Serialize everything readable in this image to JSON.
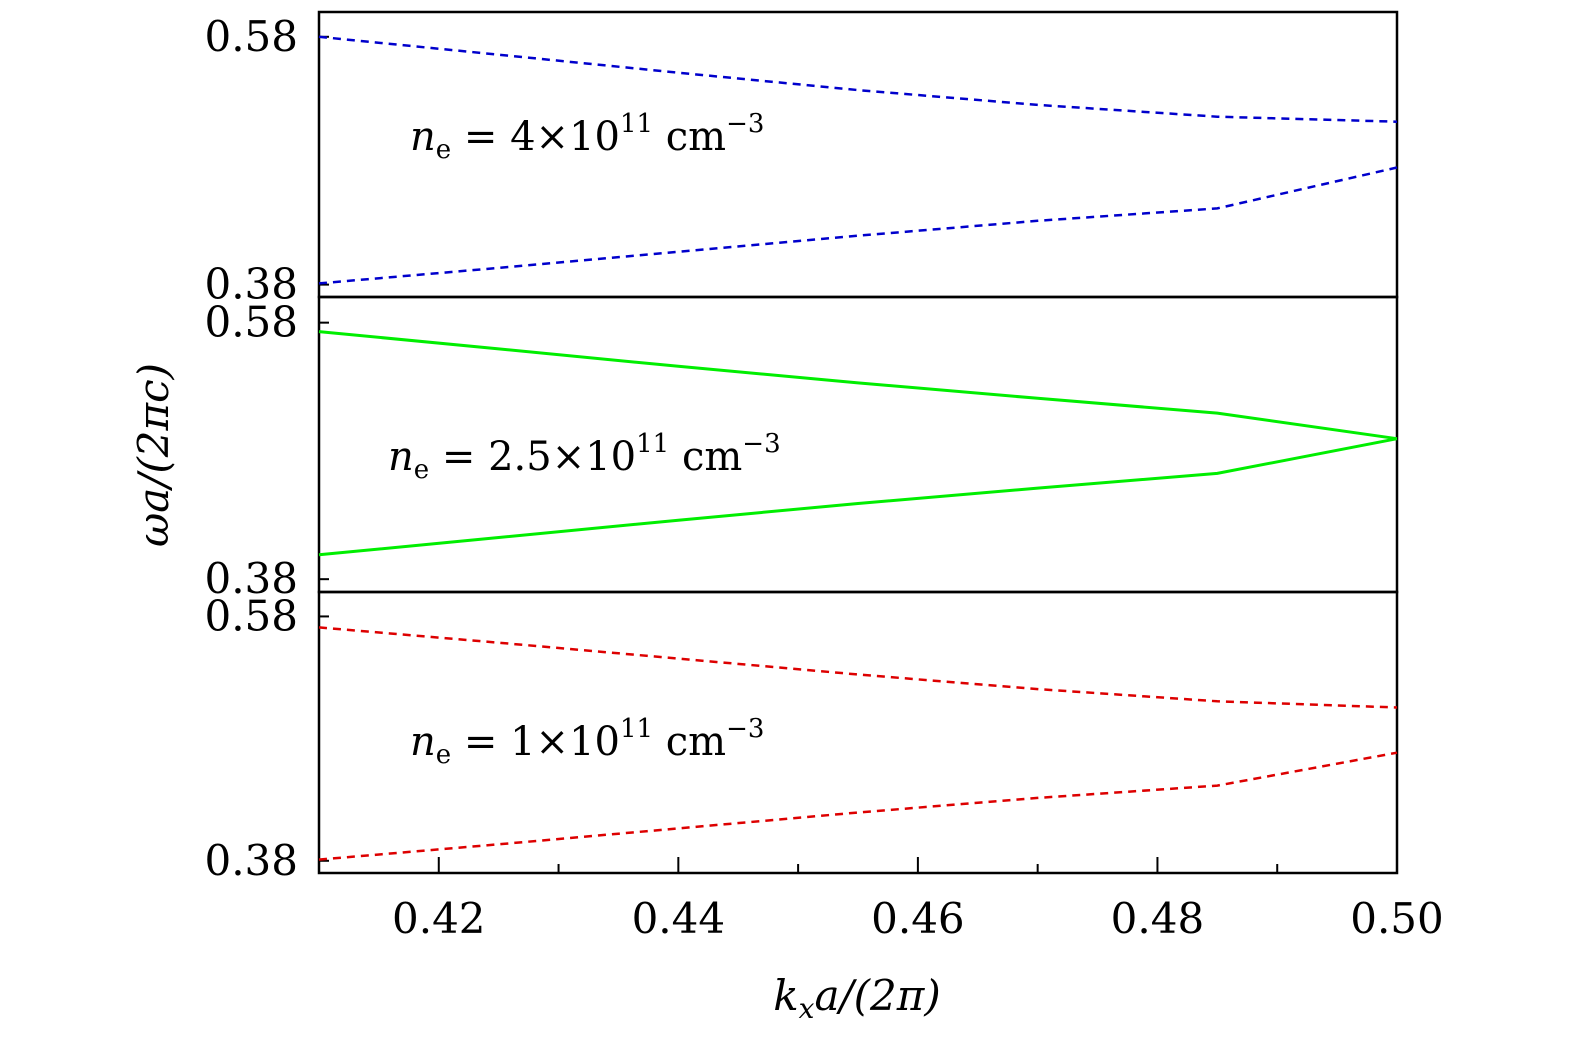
{
  "chart_data": {
    "type": "line",
    "xlabel": "k",
    "xlabel_sub": "x",
    "xlabel_rest": "a/(2π)",
    "ylabel": "ωa/(2πc)",
    "xlim": [
      0.41,
      0.5
    ],
    "x_ticks": [
      "0.42",
      "0.44",
      "0.46",
      "0.48",
      "0.50"
    ],
    "x_minor_ticks": [
      0.43,
      0.45,
      0.47,
      0.49
    ],
    "panels": [
      {
        "annotation": {
          "n": "n",
          "sub": "e",
          "eq": " = 4×10",
          "exp": "11",
          "unit": " cm",
          "unit_exp": "−3"
        },
        "ylim": [
          0.37,
          0.6
        ],
        "y_ticks": [
          "0.58",
          "0.38"
        ],
        "series": [
          {
            "style": "dashed",
            "color": "#0000cc",
            "x": [
              0.41,
              0.425,
              0.44,
              0.455,
              0.47,
              0.485,
              0.5
            ],
            "y": [
              0.58,
              0.5655,
              0.551,
              0.537,
              0.525,
              0.5155,
              0.5115
            ]
          },
          {
            "style": "dashed",
            "color": "#0000cc",
            "x": [
              0.41,
              0.425,
              0.44,
              0.455,
              0.47,
              0.485,
              0.5
            ],
            "y": [
              0.381,
              0.3935,
              0.4065,
              0.4195,
              0.4315,
              0.4415,
              0.4745
            ]
          }
        ]
      },
      {
        "annotation": {
          "n": "n",
          "sub": "e",
          "eq": " = 2.5×10",
          "exp": "11",
          "unit": " cm",
          "unit_exp": "−3"
        },
        "ylim": [
          0.37,
          0.6
        ],
        "y_ticks": [
          "0.58",
          "0.38"
        ],
        "series": [
          {
            "style": "solid",
            "color": "#00ee00",
            "x": [
              0.41,
              0.425,
              0.44,
              0.455,
              0.47,
              0.485,
              0.5
            ],
            "y": [
              0.573,
              0.5595,
              0.546,
              0.533,
              0.521,
              0.5095,
              0.4895
            ]
          },
          {
            "style": "solid",
            "color": "#00ee00",
            "x": [
              0.41,
              0.425,
              0.44,
              0.455,
              0.47,
              0.485,
              0.5
            ],
            "y": [
              0.399,
              0.4125,
              0.426,
              0.439,
              0.451,
              0.4625,
              0.4895
            ]
          }
        ]
      },
      {
        "annotation": {
          "n": "n",
          "sub": "e",
          "eq": " = 1×10",
          "exp": "11",
          "unit": " cm",
          "unit_exp": "−3"
        },
        "ylim": [
          0.37,
          0.6
        ],
        "y_ticks": [
          "0.58",
          "0.38"
        ],
        "series": [
          {
            "style": "dashed",
            "color": "#dd0000",
            "x": [
              0.41,
              0.425,
              0.44,
              0.455,
              0.47,
              0.485,
              0.5
            ],
            "y": [
              0.571,
              0.5585,
              0.5455,
              0.5325,
              0.5205,
              0.5105,
              0.5055
            ]
          },
          {
            "style": "dashed",
            "color": "#dd0000",
            "x": [
              0.41,
              0.425,
              0.44,
              0.455,
              0.47,
              0.485,
              0.5
            ],
            "y": [
              0.381,
              0.3935,
              0.4065,
              0.4195,
              0.4315,
              0.4415,
              0.4685
            ]
          }
        ]
      }
    ]
  }
}
